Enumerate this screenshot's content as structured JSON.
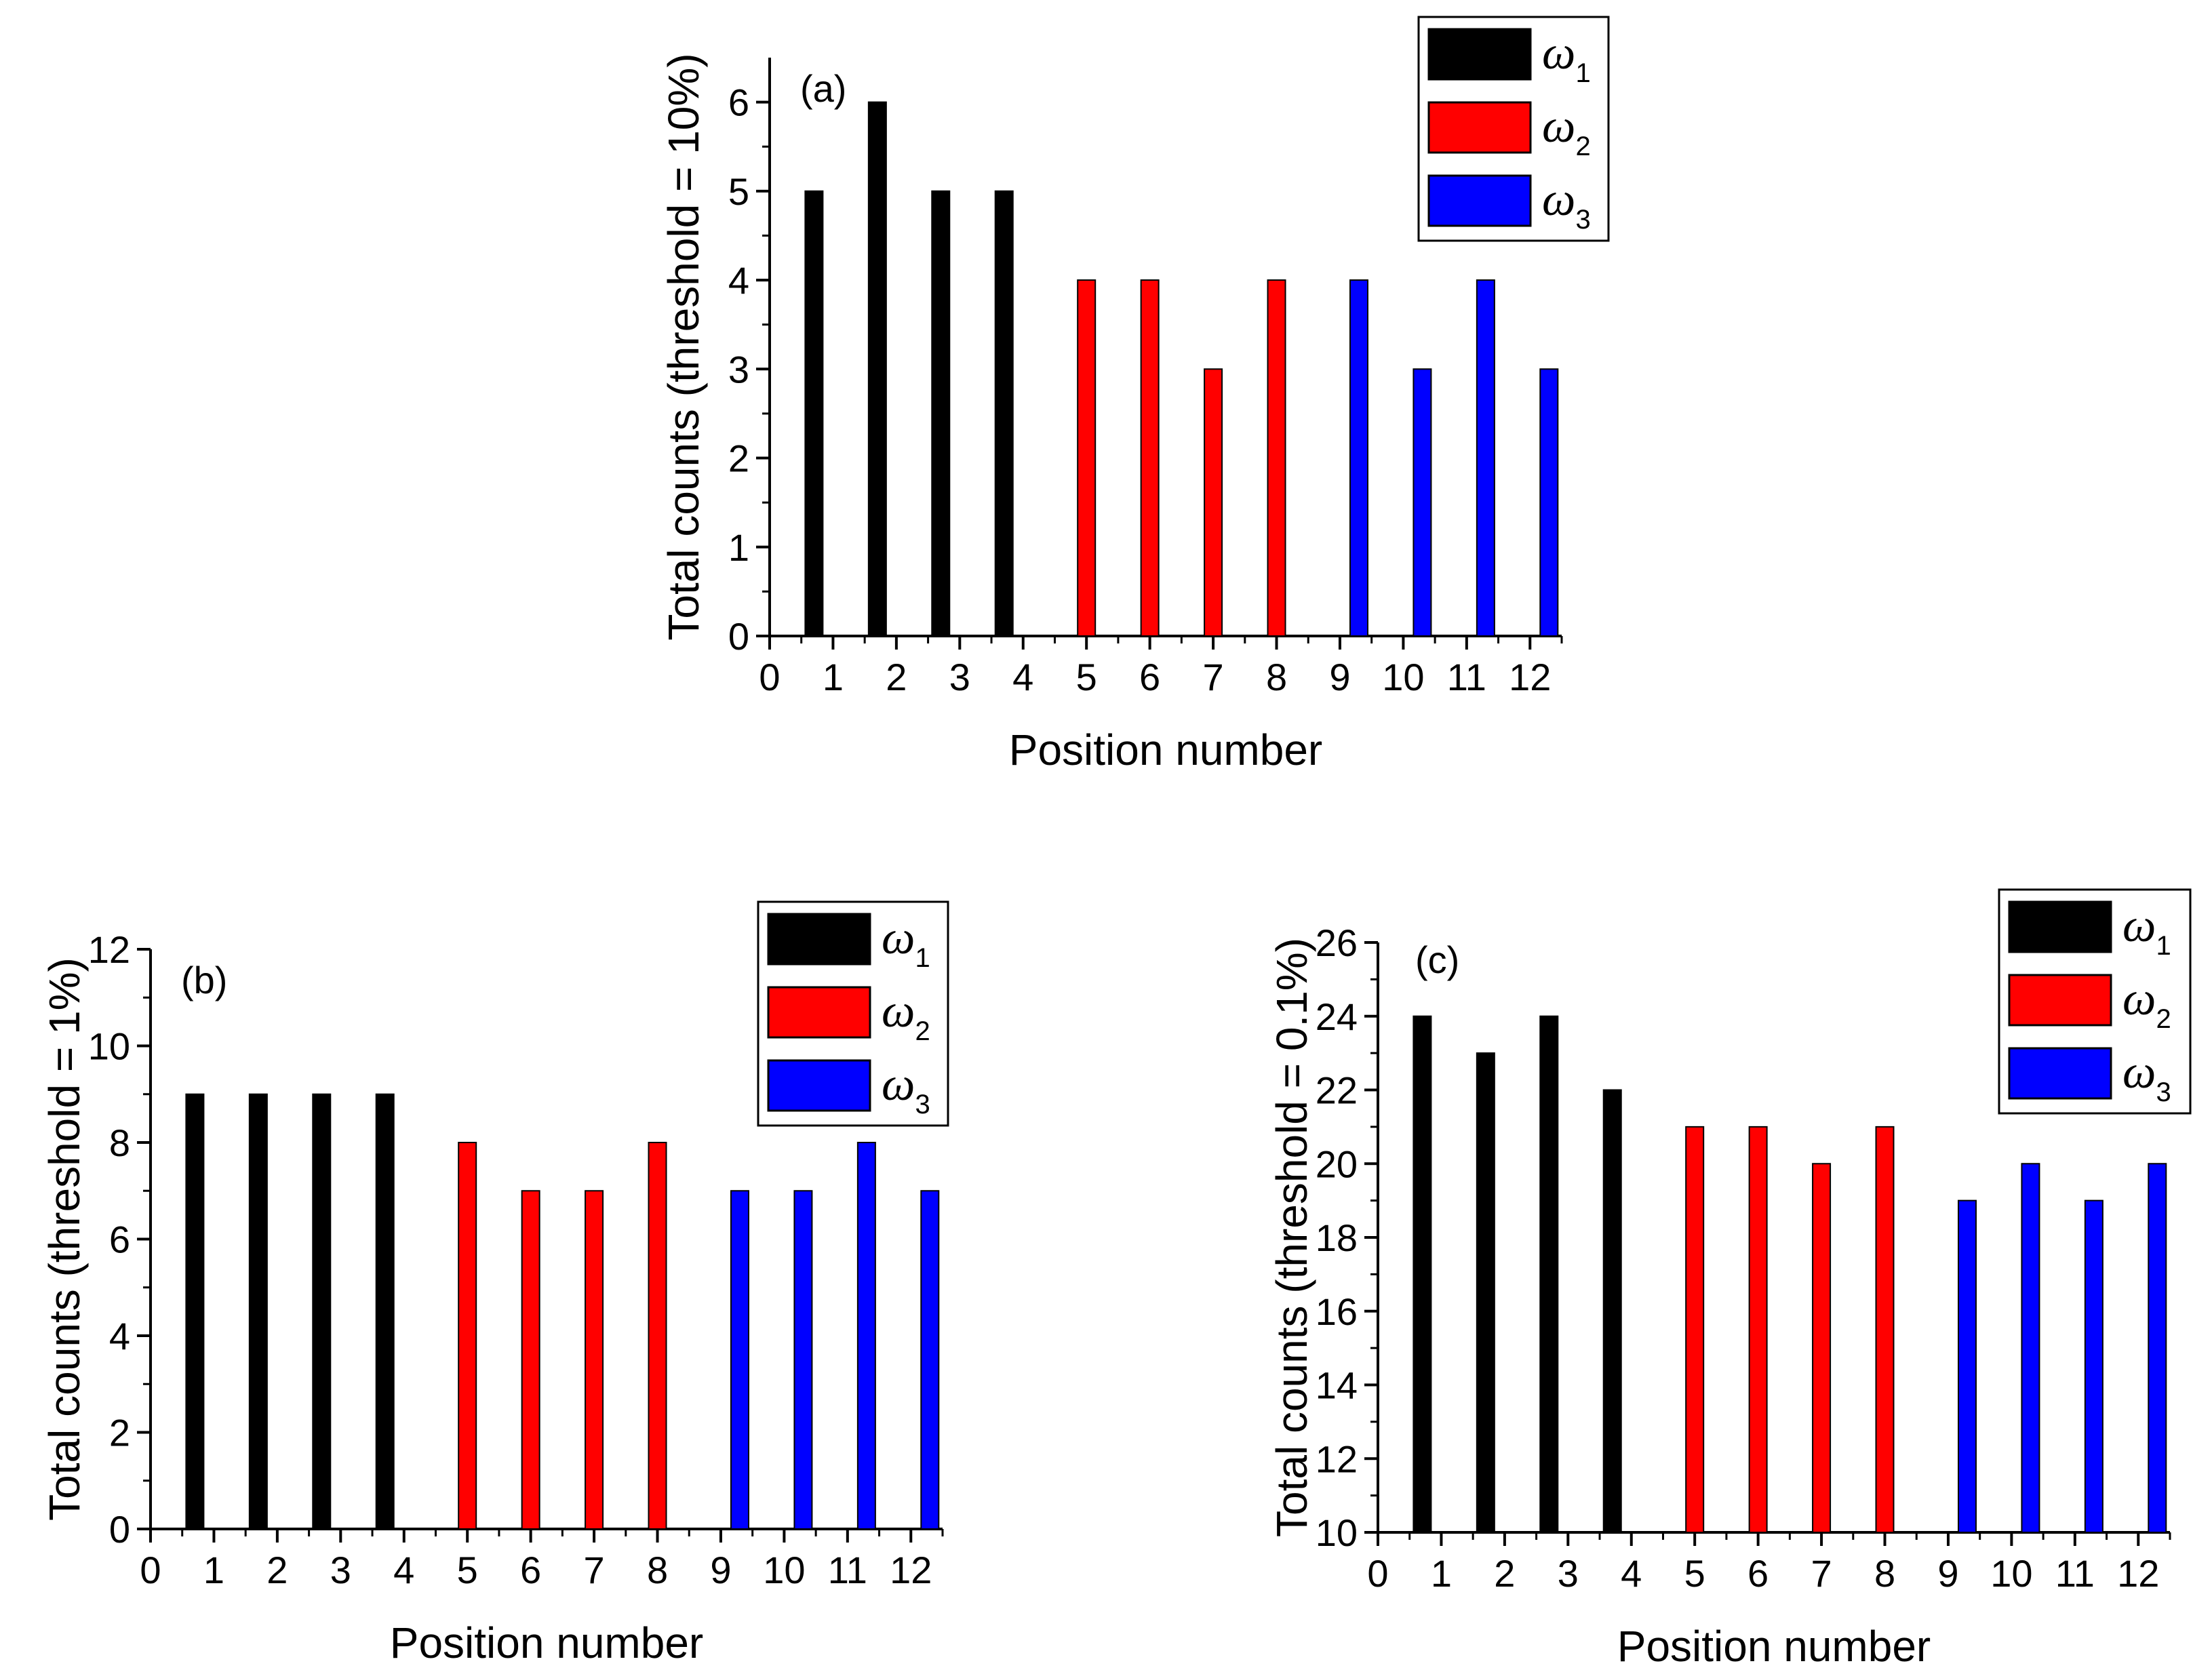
{
  "chart_data": [
    {
      "type": "bar",
      "panel_label": "(a)",
      "categories": [
        "1",
        "2",
        "3",
        "4",
        "5",
        "6",
        "7",
        "8",
        "9",
        "10",
        "11",
        "12"
      ],
      "x_ticks": [
        "0",
        "1",
        "2",
        "3",
        "4",
        "5",
        "6",
        "7",
        "8",
        "9",
        "10",
        "11",
        "12"
      ],
      "values": [
        5,
        6,
        5,
        5,
        4,
        4,
        3,
        4,
        4,
        3,
        4,
        3
      ],
      "groups": [
        "w1",
        "w1",
        "w1",
        "w1",
        "w2",
        "w2",
        "w2",
        "w2",
        "w3",
        "w3",
        "w3",
        "w3"
      ],
      "y_ticks": [
        "0",
        "1",
        "2",
        "3",
        "4",
        "5",
        "6"
      ],
      "ylim": [
        0,
        6.5
      ],
      "xlim": [
        0,
        12.5
      ],
      "xlabel": "Position number",
      "ylabel": "Total counts (threshold = 10%)",
      "legend": [
        {
          "key": "w1",
          "symbol": "ω",
          "sub": "1",
          "color": "#000000"
        },
        {
          "key": "w2",
          "symbol": "ω",
          "sub": "2",
          "color": "#ff0000"
        },
        {
          "key": "w3",
          "symbol": "ω",
          "sub": "3",
          "color": "#0000ff"
        }
      ],
      "legend_position": "top-right"
    },
    {
      "type": "bar",
      "panel_label": "(b)",
      "categories": [
        "1",
        "2",
        "3",
        "4",
        "5",
        "6",
        "7",
        "8",
        "9",
        "10",
        "11",
        "12"
      ],
      "x_ticks": [
        "0",
        "1",
        "2",
        "3",
        "4",
        "5",
        "6",
        "7",
        "8",
        "9",
        "10",
        "11",
        "12"
      ],
      "values": [
        9,
        9,
        9,
        9,
        8,
        7,
        7,
        8,
        7,
        7,
        8,
        7
      ],
      "groups": [
        "w1",
        "w1",
        "w1",
        "w1",
        "w2",
        "w2",
        "w2",
        "w2",
        "w3",
        "w3",
        "w3",
        "w3"
      ],
      "y_ticks": [
        "0",
        "2",
        "4",
        "6",
        "8",
        "10",
        "12"
      ],
      "ylim": [
        0,
        12
      ],
      "xlim": [
        0,
        12.5
      ],
      "xlabel": "Position number",
      "ylabel": "Total counts (threshold = 1%)",
      "legend": [
        {
          "key": "w1",
          "symbol": "ω",
          "sub": "1",
          "color": "#000000"
        },
        {
          "key": "w2",
          "symbol": "ω",
          "sub": "2",
          "color": "#ff0000"
        },
        {
          "key": "w3",
          "symbol": "ω",
          "sub": "3",
          "color": "#0000ff"
        }
      ],
      "legend_position": "top-right"
    },
    {
      "type": "bar",
      "panel_label": "(c)",
      "categories": [
        "1",
        "2",
        "3",
        "4",
        "5",
        "6",
        "7",
        "8",
        "9",
        "10",
        "11",
        "12"
      ],
      "x_ticks": [
        "0",
        "1",
        "2",
        "3",
        "4",
        "5",
        "6",
        "7",
        "8",
        "9",
        "10",
        "11",
        "12"
      ],
      "values": [
        24,
        23,
        24,
        22,
        21,
        21,
        20,
        21,
        19,
        20,
        19,
        20
      ],
      "groups": [
        "w1",
        "w1",
        "w1",
        "w1",
        "w2",
        "w2",
        "w2",
        "w2",
        "w3",
        "w3",
        "w3",
        "w3"
      ],
      "y_ticks": [
        "10",
        "12",
        "14",
        "16",
        "18",
        "20",
        "22",
        "24",
        "26"
      ],
      "ylim": [
        10,
        26
      ],
      "xlim": [
        0,
        12.5
      ],
      "xlabel": "Position number",
      "ylabel": "Total counts (threshold = 0.1%)",
      "legend": [
        {
          "key": "w1",
          "symbol": "ω",
          "sub": "1",
          "color": "#000000"
        },
        {
          "key": "w2",
          "symbol": "ω",
          "sub": "2",
          "color": "#ff0000"
        },
        {
          "key": "w3",
          "symbol": "ω",
          "sub": "3",
          "color": "#0000ff"
        }
      ],
      "legend_position": "top-right"
    }
  ]
}
